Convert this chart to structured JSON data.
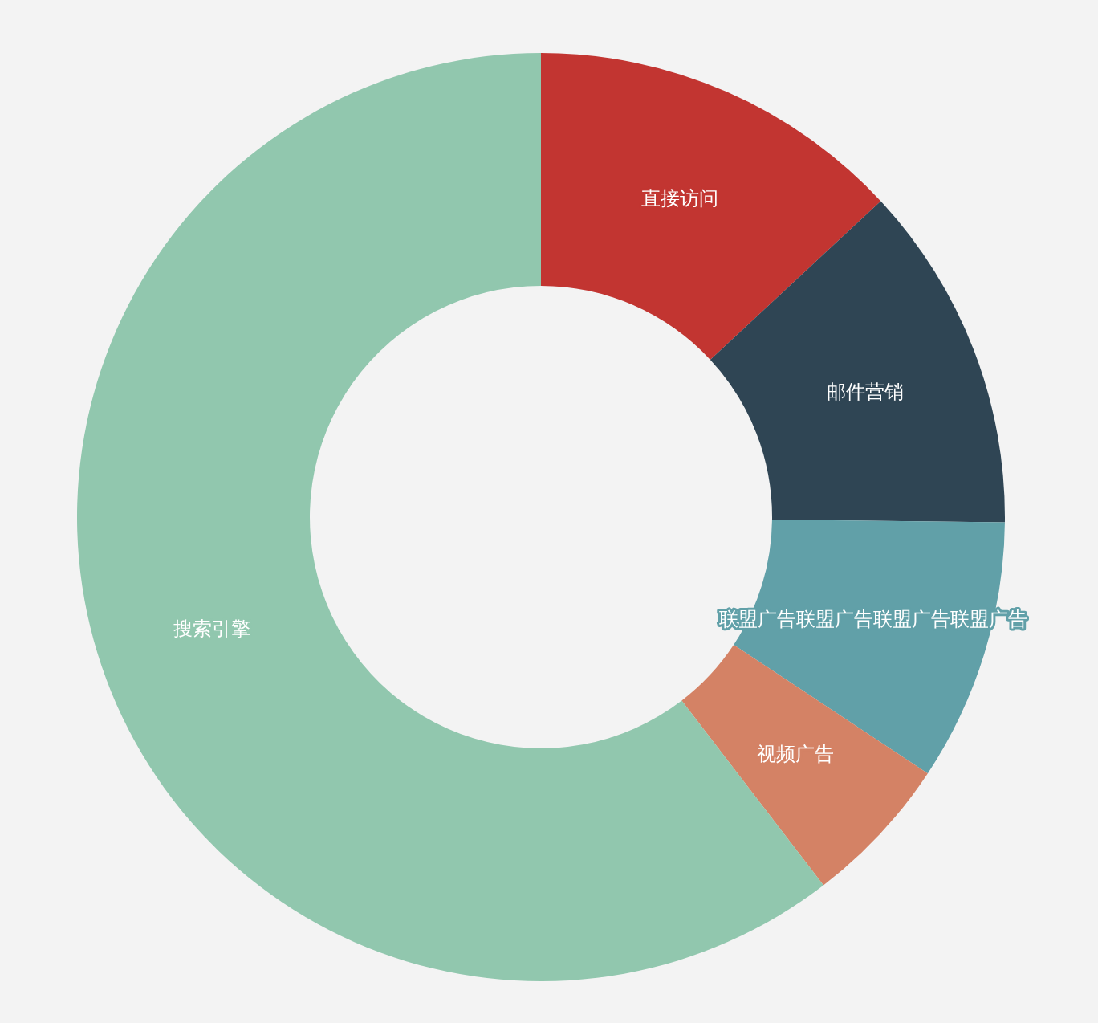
{
  "chart_data": {
    "type": "donut",
    "categories": [
      "直接访问",
      "邮件营销",
      "联盟广告联盟广告联盟广告联盟广告",
      "视频广告",
      "搜索引擎"
    ],
    "values": [
      13.08,
      12.1,
      9.13,
      5.27,
      60.42
    ],
    "colors": [
      "#c23531",
      "#2f4554",
      "#61a0a8",
      "#d48265",
      "#91c7ae"
    ]
  }
}
